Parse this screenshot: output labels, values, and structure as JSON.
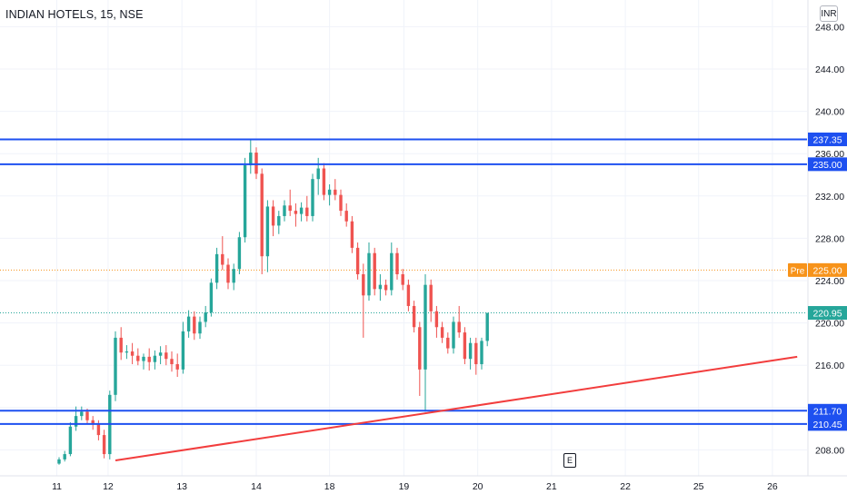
{
  "header": {
    "symbol": "INDIAN HOTELS, 15, NSE",
    "currency": "INR",
    "event_marker": "E"
  },
  "colors": {
    "up": "#26a69a",
    "down": "#ef5350",
    "level_line": "#1e50f0",
    "trend_line": "#f23d3d",
    "premarket": "#f7931a",
    "last_price": "#26a69a",
    "grid": "#f0f3fa",
    "axis_text": "#131722"
  },
  "chart_data": {
    "type": "candlestick",
    "interval": "15 min",
    "ylim": [
      206.6,
      249.2
    ],
    "y_ticks": [
      "208.00",
      "212.00",
      "216.00",
      "220.00",
      "224.00",
      "228.00",
      "232.00",
      "236.00",
      "240.00",
      "244.00",
      "248.00"
    ],
    "x_ticks": [
      {
        "label": "11",
        "slot": -0.4
      },
      {
        "label": "12",
        "slot": 8.7
      },
      {
        "label": "13",
        "slot": 21.8
      },
      {
        "label": "14",
        "slot": 35.0
      },
      {
        "label": "18",
        "slot": 48.0
      },
      {
        "label": "19",
        "slot": 61.2
      },
      {
        "label": "20",
        "slot": 74.3
      },
      {
        "label": "21",
        "slot": 87.4
      },
      {
        "label": "22",
        "slot": 100.5
      },
      {
        "label": "25",
        "slot": 113.5
      },
      {
        "label": "26",
        "slot": 126.6
      }
    ],
    "candles": [
      [
        206.7,
        207.3,
        206.6,
        207.1
      ],
      [
        207.1,
        207.9,
        206.9,
        207.6
      ],
      [
        207.6,
        210.6,
        207.4,
        210.2
      ],
      [
        210.2,
        212.1,
        209.8,
        211.2
      ],
      [
        211.2,
        212.1,
        210.8,
        211.6
      ],
      [
        211.6,
        211.9,
        210.4,
        210.8
      ],
      [
        210.8,
        211.2,
        209.9,
        210.4
      ],
      [
        210.4,
        210.8,
        208.9,
        209.4
      ],
      [
        209.4,
        209.9,
        207.2,
        207.6
      ],
      [
        207.6,
        213.6,
        207.1,
        213.2
      ],
      [
        213.2,
        219.2,
        212.6,
        218.6
      ],
      [
        218.6,
        219.6,
        216.5,
        217.2
      ],
      [
        217.2,
        217.9,
        216.6,
        217.3
      ],
      [
        217.3,
        218.1,
        216.1,
        216.9
      ],
      [
        216.9,
        217.6,
        216.0,
        216.4
      ],
      [
        216.4,
        217.1,
        215.6,
        216.8
      ],
      [
        216.8,
        217.6,
        215.5,
        216.3
      ],
      [
        216.3,
        217.4,
        215.6,
        216.9
      ],
      [
        216.9,
        217.8,
        216.1,
        217.2
      ],
      [
        217.2,
        217.9,
        216.0,
        216.6
      ],
      [
        216.6,
        217.3,
        215.4,
        216.1
      ],
      [
        216.1,
        217.1,
        214.9,
        215.6
      ],
      [
        215.6,
        220.1,
        215.2,
        219.2
      ],
      [
        219.2,
        221.2,
        218.6,
        220.6
      ],
      [
        220.6,
        221.1,
        218.4,
        219.0
      ],
      [
        219.0,
        220.6,
        218.5,
        220.1
      ],
      [
        220.1,
        221.6,
        219.6,
        221.0
      ],
      [
        221.0,
        224.2,
        220.6,
        223.8
      ],
      [
        223.8,
        227.1,
        223.2,
        226.5
      ],
      [
        226.5,
        228.2,
        225.0,
        225.5
      ],
      [
        225.5,
        226.1,
        223.2,
        223.8
      ],
      [
        223.8,
        225.6,
        223.1,
        225.1
      ],
      [
        225.1,
        228.6,
        224.6,
        228.1
      ],
      [
        228.1,
        235.6,
        227.6,
        234.9
      ],
      [
        234.9,
        237.4,
        234.1,
        236.1
      ],
      [
        236.1,
        236.6,
        233.6,
        234.1
      ],
      [
        234.1,
        234.6,
        224.6,
        226.3
      ],
      [
        226.3,
        231.6,
        224.8,
        231.0
      ],
      [
        231.0,
        231.6,
        228.2,
        229.2
      ],
      [
        229.2,
        230.6,
        228.4,
        230.1
      ],
      [
        230.1,
        231.6,
        229.6,
        231.1
      ],
      [
        231.1,
        232.6,
        230.1,
        230.6
      ],
      [
        230.6,
        231.3,
        229.1,
        230.3
      ],
      [
        230.3,
        231.4,
        229.6,
        230.9
      ],
      [
        230.9,
        232.0,
        229.6,
        230.1
      ],
      [
        230.1,
        234.1,
        229.6,
        233.6
      ],
      [
        233.6,
        235.6,
        232.1,
        234.6
      ],
      [
        234.6,
        235.1,
        231.6,
        232.1
      ],
      [
        232.1,
        233.1,
        231.1,
        232.6
      ],
      [
        232.6,
        233.6,
        231.6,
        232.1
      ],
      [
        232.1,
        232.6,
        230.1,
        230.6
      ],
      [
        230.6,
        231.3,
        229.1,
        229.6
      ],
      [
        229.6,
        230.1,
        226.6,
        227.1
      ],
      [
        227.1,
        227.6,
        224.1,
        224.6
      ],
      [
        224.6,
        225.6,
        218.6,
        222.6
      ],
      [
        222.6,
        227.6,
        222.1,
        226.6
      ],
      [
        226.6,
        227.1,
        222.6,
        223.2
      ],
      [
        223.2,
        224.6,
        222.1,
        223.6
      ],
      [
        223.6,
        224.1,
        222.6,
        223.1
      ],
      [
        223.1,
        227.6,
        222.6,
        226.6
      ],
      [
        226.6,
        227.1,
        224.1,
        224.6
      ],
      [
        224.6,
        225.1,
        223.1,
        223.6
      ],
      [
        223.6,
        224.1,
        221.1,
        221.6
      ],
      [
        221.6,
        222.1,
        219.1,
        219.6
      ],
      [
        219.6,
        220.1,
        213.1,
        215.6
      ],
      [
        215.6,
        224.6,
        211.6,
        223.6
      ],
      [
        223.6,
        224.1,
        220.1,
        221.1
      ],
      [
        221.1,
        221.6,
        218.6,
        219.6
      ],
      [
        219.6,
        220.1,
        218.1,
        218.6
      ],
      [
        218.6,
        219.1,
        217.1,
        217.6
      ],
      [
        217.6,
        220.6,
        217.1,
        220.1
      ],
      [
        220.1,
        221.6,
        218.6,
        219.1
      ],
      [
        219.1,
        219.6,
        216.1,
        216.6
      ],
      [
        216.6,
        218.6,
        215.6,
        218.1
      ],
      [
        218.1,
        218.6,
        215.1,
        216.1
      ],
      [
        216.1,
        218.6,
        215.6,
        218.3
      ],
      [
        218.3,
        220.95,
        217.8,
        220.95
      ]
    ],
    "levels": [
      {
        "label": "237.35",
        "value": 237.35,
        "kind": "resistance"
      },
      {
        "label": "235.00",
        "value": 235.0,
        "kind": "resistance"
      },
      {
        "label": "211.70",
        "value": 211.7,
        "kind": "support"
      },
      {
        "label": "210.45",
        "value": 210.45,
        "kind": "support"
      }
    ],
    "trend_line": {
      "start": {
        "slot": 10.0,
        "value": 207.0
      },
      "end": {
        "slot": 131.0,
        "value": 216.8
      }
    },
    "premarket": {
      "tag": "Pre",
      "label": "225.00",
      "value": 225.0
    },
    "last_price": {
      "label": "220.95",
      "value": 220.95
    }
  }
}
